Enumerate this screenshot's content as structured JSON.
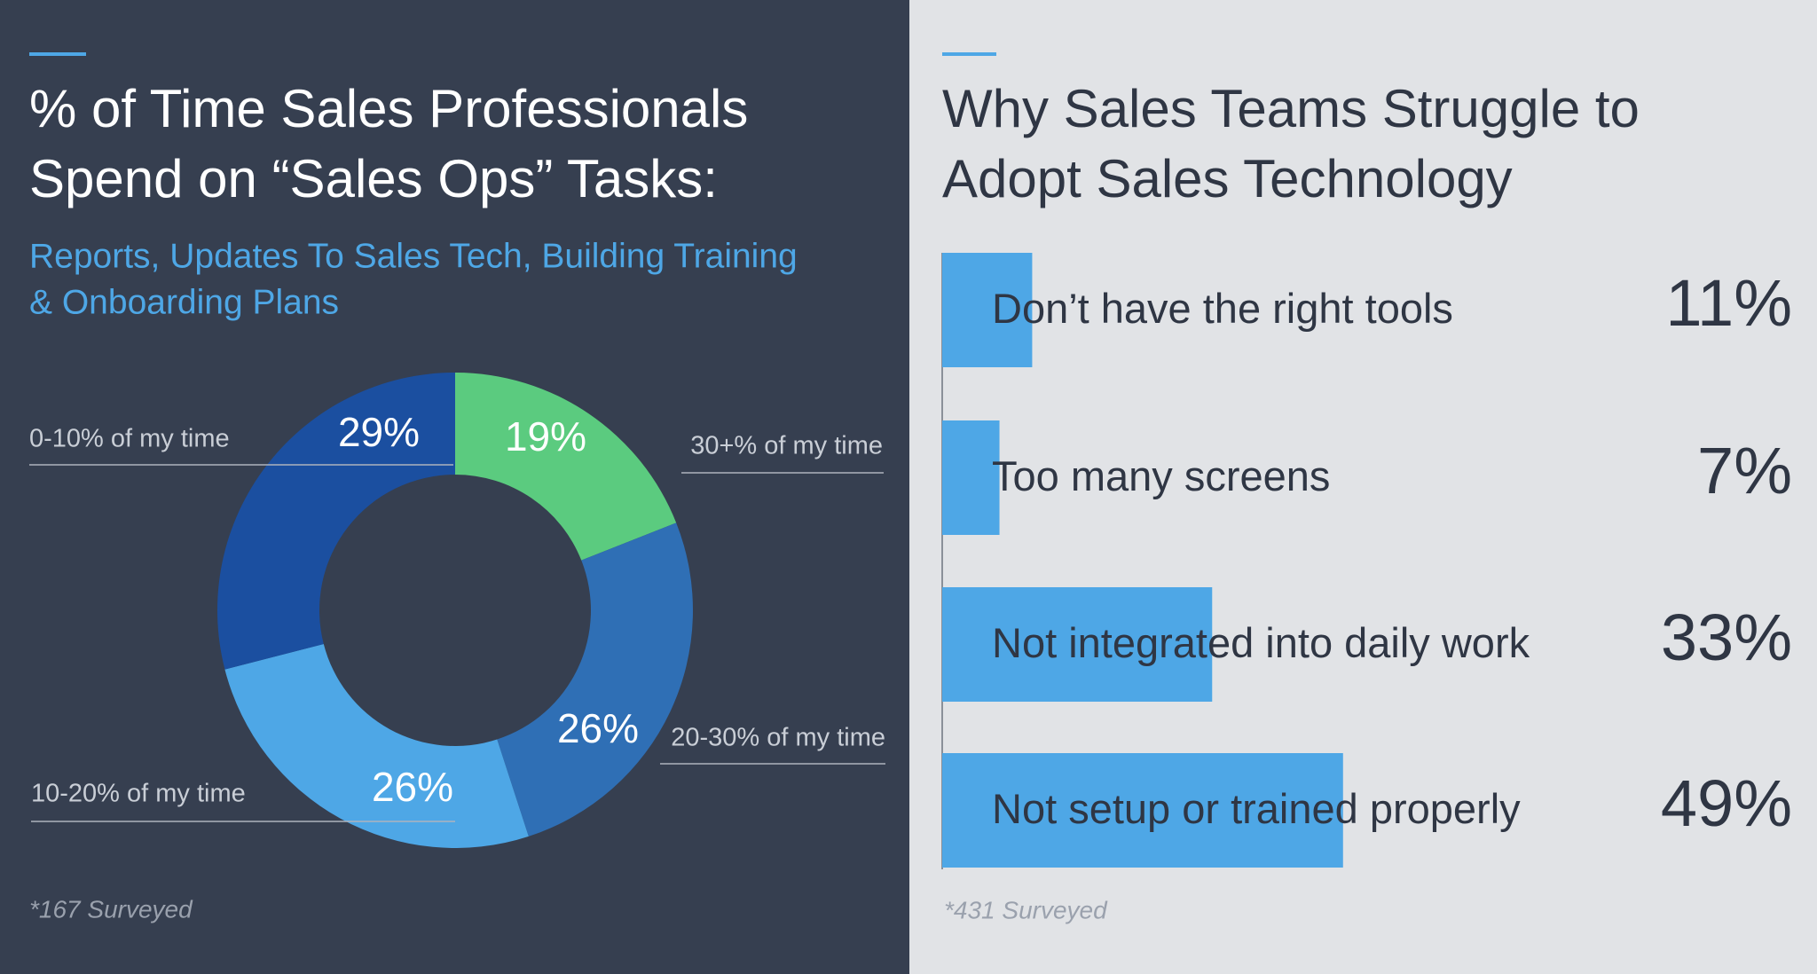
{
  "chart_data": [
    {
      "type": "pie",
      "title": [
        "% of Time Sales Professionals",
        "Spend on “Sales Ops” Tasks:"
      ],
      "subtitle": [
        "Reports, Updates To Sales Tech, Building Training",
        "& Onboarding Plans"
      ],
      "categories": [
        "30+% of my time",
        "20-30% of my time",
        "10-20% of my time",
        "0-10% of my time"
      ],
      "values": [
        19,
        26,
        26,
        29
      ],
      "value_labels": [
        "19%",
        "26%",
        "26%",
        "29%"
      ],
      "colors": [
        "#5bcb7f",
        "#2f6fb5",
        "#4ea7e6",
        "#1b4fa0"
      ],
      "note": "*167 Surveyed"
    },
    {
      "type": "bar",
      "title": [
        "Why Sales Teams Struggle to",
        "Adopt Sales Technology"
      ],
      "categories": [
        "Don’t have the right tools",
        "Too many screens",
        "Not integrated into daily work",
        "Not setup or trained properly"
      ],
      "values": [
        11,
        7,
        33,
        49
      ],
      "value_labels": [
        "11%",
        "7%",
        "33%",
        "49%"
      ],
      "color": "#4ea7e6",
      "xlim": [
        0,
        100
      ],
      "note": "*431 Surveyed"
    }
  ]
}
